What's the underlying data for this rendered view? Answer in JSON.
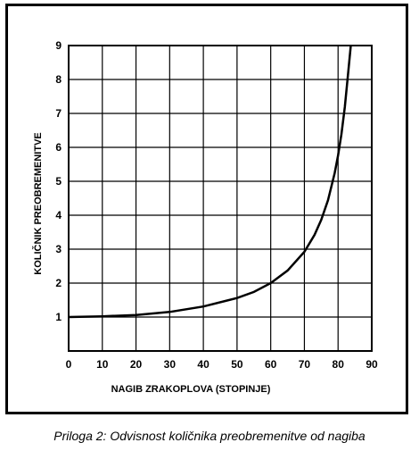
{
  "caption": "Priloga 2: Odvisnost količnika preobremenitve od nagiba",
  "chart_data": {
    "type": "line",
    "xlabel": "NAGIB ZRAKOPLOVA (STOPINJE)",
    "ylabel": "KOLIČNIK PREOBREMENITVE",
    "xlim": [
      0,
      90
    ],
    "ylim": [
      0,
      9
    ],
    "xticks": [
      0,
      10,
      20,
      30,
      40,
      50,
      60,
      70,
      80,
      90
    ],
    "yticks": [
      1,
      2,
      3,
      4,
      5,
      6,
      7,
      8,
      9
    ],
    "grid": true,
    "series": [
      {
        "x": [
          0,
          10,
          20,
          30,
          40,
          50,
          55,
          60,
          65,
          70,
          73,
          75,
          77,
          79,
          80,
          81,
          82,
          83
        ],
        "values": [
          1.0,
          1.02,
          1.06,
          1.15,
          1.31,
          1.56,
          1.74,
          2.0,
          2.37,
          2.92,
          3.42,
          3.86,
          4.44,
          5.24,
          5.76,
          6.39,
          7.19,
          8.21
        ]
      }
    ],
    "line_color": "#000000"
  }
}
